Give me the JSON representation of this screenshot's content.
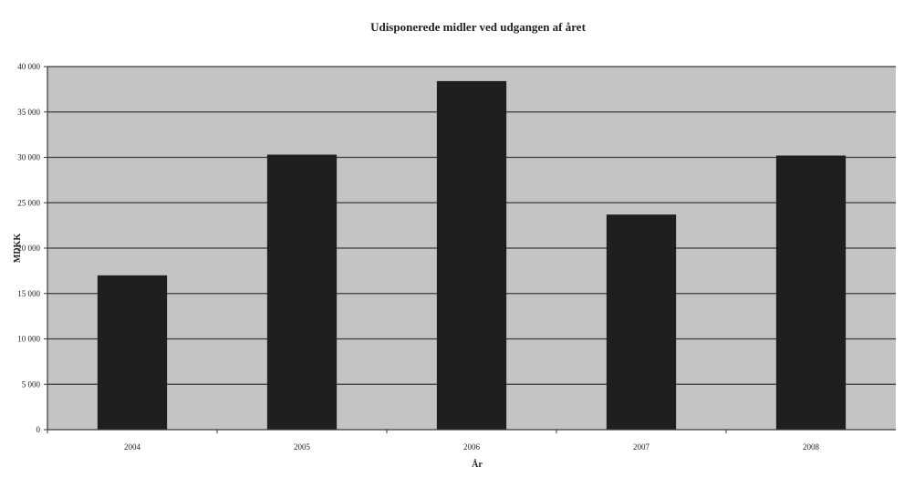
{
  "chart_data": {
    "type": "bar",
    "title": "Udisponerede midler ved udgangen af året",
    "xlabel": "År",
    "ylabel": "MDKK",
    "categories": [
      "2004",
      "2005",
      "2006",
      "2007",
      "2008"
    ],
    "values": [
      17000,
      30300,
      38400,
      23700,
      30200
    ],
    "ylim": [
      0,
      40000
    ],
    "yticks": [
      0,
      5000,
      10000,
      15000,
      20000,
      25000,
      30000,
      35000,
      40000
    ],
    "ytick_labels": [
      "0",
      "5 000",
      "10 000",
      "15 000",
      "20 000",
      "25 000",
      "30 000",
      "35 000",
      "40 000"
    ],
    "grid": true,
    "legend": "none",
    "colors": {
      "bar": "#1f1f1f",
      "plot_background": "#c4c4c4",
      "gridline": "#3a3a3a",
      "axis": "#3a3a3a",
      "text": "#222222"
    }
  }
}
